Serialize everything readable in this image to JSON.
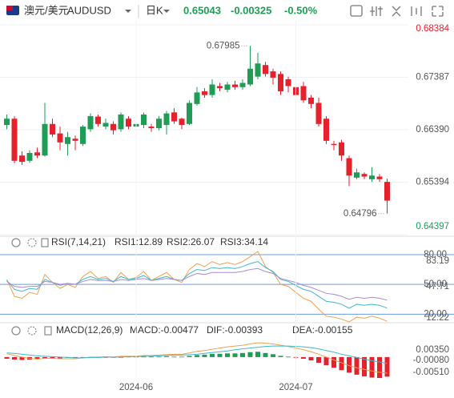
{
  "header": {
    "symbol_name": "澳元/美元",
    "symbol_code": "AUDUSD",
    "period": "日K",
    "price": "0.65043",
    "change": "-0.00325",
    "change_pct": "-0.50%"
  },
  "chart_data": [
    {
      "type": "candlestick",
      "up_color": "#1f9d55",
      "down_color": "#e5212b",
      "grid": true,
      "ylim": [
        0.64397,
        0.68384
      ],
      "yticks": [
        0.68384,
        0.67387,
        {
          "value": 0.6639,
          "label": "0.66390"
        },
        0.65394,
        0.64397
      ],
      "annotations": [
        {
          "value": 0.67985,
          "label": "0.67985"
        },
        {
          "value": 0.64796,
          "label": "0.64796"
        }
      ],
      "series": [
        {
          "open": [
            0.6648,
            0.666,
            0.659,
            0.658,
            0.6596,
            0.659,
            0.665,
            0.6632,
            0.6612,
            0.6622,
            0.6612,
            0.664,
            0.6664,
            0.6645,
            0.665,
            0.664,
            0.666,
            0.6645,
            0.6648,
            0.6645,
            0.6642,
            0.6648,
            0.6672,
            0.666,
            0.665,
            0.6688,
            0.6712,
            0.6705,
            0.6722,
            0.6715,
            0.6725,
            0.672,
            0.6725,
            0.674,
            0.6762,
            0.675,
            0.6745,
            0.6735,
            0.672,
            0.6722,
            0.67,
            0.669,
            0.666,
            0.6612,
            0.6615,
            0.6585,
            0.6548,
            0.6555,
            0.6545,
            0.655,
            0.654
          ],
          "high": [
            0.6668,
            0.6665,
            0.6598,
            0.66,
            0.6605,
            0.669,
            0.666,
            0.6645,
            0.6635,
            0.6628,
            0.6648,
            0.667,
            0.6668,
            0.666,
            0.6655,
            0.6672,
            0.6665,
            0.6658,
            0.6672,
            0.665,
            0.6665,
            0.6675,
            0.668,
            0.6662,
            0.6695,
            0.672,
            0.6718,
            0.6735,
            0.6728,
            0.673,
            0.6732,
            0.6735,
            0.67985,
            0.6785,
            0.6768,
            0.6755,
            0.675,
            0.674,
            0.673,
            0.673,
            0.6705,
            0.67,
            0.6665,
            0.6618,
            0.662,
            0.659,
            0.6565,
            0.6558,
            0.6568,
            0.6555,
            0.6546
          ],
          "low": [
            0.664,
            0.6575,
            0.6572,
            0.6576,
            0.6585,
            0.6588,
            0.6625,
            0.66,
            0.659,
            0.66,
            0.6608,
            0.6635,
            0.6645,
            0.664,
            0.663,
            0.6635,
            0.664,
            0.664,
            0.6642,
            0.6635,
            0.6638,
            0.663,
            0.665,
            0.664,
            0.6648,
            0.6685,
            0.67,
            0.67,
            0.6712,
            0.671,
            0.6715,
            0.6715,
            0.6722,
            0.6735,
            0.674,
            0.6725,
            0.6705,
            0.671,
            0.67,
            0.669,
            0.668,
            0.6645,
            0.6612,
            0.66,
            0.658,
            0.6532,
            0.6545,
            0.6545,
            0.654,
            0.654,
            0.64796
          ],
          "close": [
            0.666,
            0.658,
            0.6578,
            0.6595,
            0.659,
            0.665,
            0.663,
            0.6615,
            0.6625,
            0.6618,
            0.6645,
            0.6665,
            0.665,
            0.6652,
            0.6638,
            0.6668,
            0.6645,
            0.665,
            0.6668,
            0.6642,
            0.666,
            0.667,
            0.6655,
            0.6648,
            0.669,
            0.671,
            0.6705,
            0.6725,
            0.6718,
            0.6725,
            0.672,
            0.6728,
            0.6755,
            0.6765,
            0.6745,
            0.6738,
            0.6712,
            0.6722,
            0.6705,
            0.6695,
            0.6688,
            0.665,
            0.6618,
            0.661,
            0.659,
            0.6552,
            0.6558,
            0.655,
            0.6552,
            0.6545,
            0.65043
          ]
        }
      ]
    },
    {
      "type": "line",
      "title": "RSI(7,14,21)",
      "ylim": [
        12.22,
        83.19
      ],
      "yticks": [
        83.19,
        47.71,
        12.22
      ],
      "ref_lines": [
        {
          "value": 80,
          "label": "80.00"
        },
        {
          "value": 50,
          "label": "50.00"
        },
        {
          "value": 20,
          "label": "20.00"
        }
      ],
      "ref_color": "#6a9be0",
      "series": [
        {
          "name": "RSI1:12.89",
          "color": "#f0a050",
          "values": [
            55,
            38,
            36,
            42,
            40,
            60,
            52,
            46,
            50,
            47,
            58,
            63,
            56,
            58,
            52,
            62,
            55,
            57,
            63,
            54,
            58,
            62,
            55,
            52,
            65,
            71,
            68,
            73,
            70,
            72,
            70,
            73,
            78,
            83.19,
            68,
            62,
            50,
            48,
            42,
            36,
            33,
            25,
            18,
            17,
            15,
            12.22,
            17,
            16,
            18,
            16,
            12.89
          ]
        },
        {
          "name": "RSI2:26.07",
          "color": "#3fb8c9",
          "values": [
            54,
            45,
            43,
            46,
            45,
            55,
            52,
            49,
            51,
            50,
            55,
            58,
            55,
            56,
            53,
            58,
            55,
            56,
            59,
            54,
            56,
            58,
            55,
            54,
            61,
            65,
            64,
            67,
            66,
            67,
            66,
            68,
            71,
            73,
            67,
            63,
            55,
            53,
            49,
            45,
            43,
            38,
            33,
            32,
            30,
            26,
            30,
            29,
            30,
            29,
            26.07
          ]
        },
        {
          "name": "RSI3:34.14",
          "color": "#a58ad6",
          "values": [
            53,
            48,
            47,
            48,
            48,
            53,
            52,
            50,
            51,
            50,
            53,
            55,
            54,
            54,
            53,
            55,
            54,
            55,
            56,
            54,
            55,
            56,
            55,
            54,
            58,
            61,
            60,
            62,
            62,
            62,
            62,
            63,
            65,
            66,
            63,
            61,
            56,
            54,
            52,
            49,
            47,
            44,
            41,
            40,
            38,
            35,
            37,
            36,
            37,
            36,
            34.14
          ]
        }
      ]
    },
    {
      "type": "macd",
      "title": "MACD(12,26,9)",
      "ylim": [
        -0.0051,
        0.0035
      ],
      "yticks": [
        {
          "value": 0.0035,
          "label": "0.00350"
        },
        {
          "value": -0.0008,
          "label": "-0.00080"
        },
        {
          "value": -0.0051,
          "label": "-0.00510"
        }
      ],
      "up_color": "#1f9d55",
      "down_color": "#e5212b",
      "categories": [
        null,
        null,
        null,
        null,
        null,
        null,
        null,
        null,
        null,
        null,
        null,
        null,
        null,
        null,
        null,
        null,
        null,
        "2024-06",
        null,
        null,
        null,
        null,
        null,
        null,
        null,
        null,
        null,
        null,
        null,
        null,
        null,
        null,
        null,
        null,
        null,
        null,
        null,
        null,
        "2024-07",
        null,
        null,
        null,
        null,
        null,
        null,
        null,
        null,
        null,
        null,
        null,
        null
      ],
      "series": [
        {
          "name": "MACD:-0.00477",
          "color": "#a58ad6",
          "kind": "bar",
          "values": [
            -0.0004,
            -0.0006,
            -0.0007,
            -0.0006,
            -0.0005,
            -0.0003,
            -0.0003,
            -0.0003,
            -0.0002,
            -0.0002,
            -0.0001,
            -0.0001,
            -0.0001,
            -0.0001,
            -0.0001,
            -0.0001,
            0.0001,
            0.0001,
            0.0001,
            0.0001,
            0.0001,
            0.0002,
            0.0001,
            0.0001,
            0.0003,
            0.0005,
            0.0006,
            0.0008,
            0.0008,
            0.0009,
            0.0009,
            0.001,
            0.0012,
            0.0013,
            0.001,
            0.0007,
            0.0003,
            0.0001,
            -0.0001,
            -0.0004,
            -0.0008,
            -0.0014,
            -0.002,
            -0.0026,
            -0.0032,
            -0.0038,
            -0.0043,
            -0.0047,
            -0.005,
            -0.0051,
            -0.00477
          ]
        },
        {
          "name": "DIF:-0.00393",
          "color": "#f0a050",
          "kind": "line",
          "values": [
            0.0008,
            0.0004,
            0,
            -0.0003,
            -0.0005,
            -0.0003,
            -0.0003,
            -0.0004,
            -0.0004,
            -0.0004,
            -0.0002,
            0,
            0,
            0.0001,
            0,
            0.0002,
            0.0002,
            0.0002,
            0.0004,
            0.0004,
            0.0005,
            0.0006,
            0.0007,
            0.0007,
            0.001,
            0.0014,
            0.0016,
            0.0019,
            0.0022,
            0.0025,
            0.0027,
            0.0029,
            0.0032,
            0.0035,
            0.0034,
            0.0032,
            0.0029,
            0.0026,
            0.0022,
            0.0018,
            0.0013,
            0.0007,
            0,
            -0.0007,
            -0.0014,
            -0.0021,
            -0.0026,
            -0.003,
            -0.0034,
            -0.0037,
            -0.00393
          ]
        },
        {
          "name": "DEA:-0.00155",
          "color": "#3fb8c9",
          "kind": "line",
          "values": [
            0.001,
            0.0009,
            0.0007,
            0.0005,
            0.0003,
            0.0002,
            0.0001,
            0,
            -0.0001,
            -0.0002,
            -0.0002,
            -0.0001,
            -0.0001,
            0,
            0,
            0,
            0.0001,
            0.0001,
            0.0002,
            0.0002,
            0.0003,
            0.0004,
            0.0005,
            0.0005,
            0.0006,
            0.0007,
            0.0009,
            0.0011,
            0.0013,
            0.0015,
            0.0018,
            0.002,
            0.0022,
            0.0024,
            0.0026,
            0.0027,
            0.0027,
            0.0027,
            0.0026,
            0.0025,
            0.0023,
            0.002,
            0.0016,
            0.0012,
            0.0007,
            0.0003,
            -0.0001,
            -0.0005,
            -0.0009,
            -0.0012,
            -0.00155
          ]
        }
      ]
    }
  ]
}
